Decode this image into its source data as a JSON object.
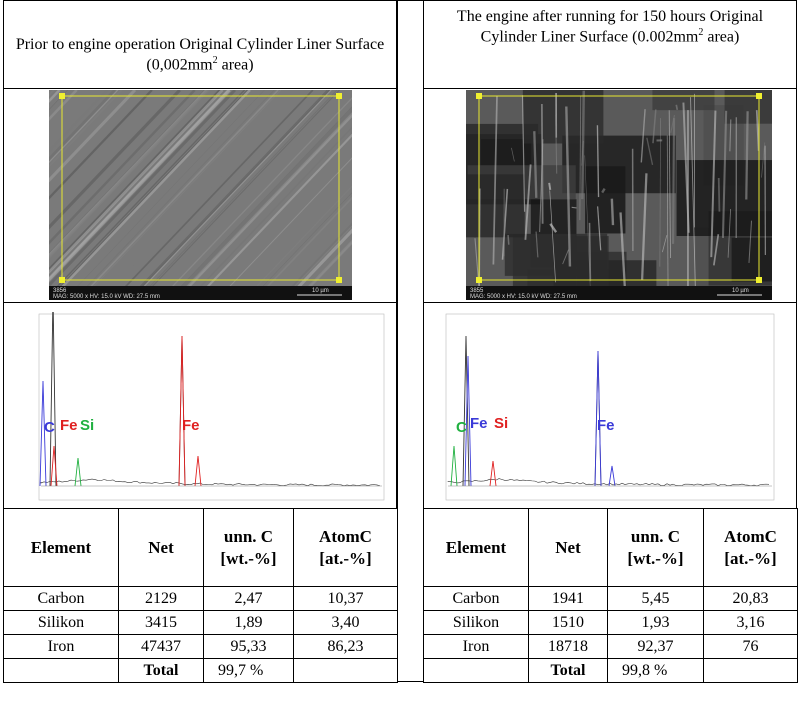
{
  "panels": [
    {
      "heading": [
        "Prior to engine operation Original Cylinder Liner Surface (0,002mm",
        "2",
        " area)"
      ],
      "sem_caption": {
        "id": "3856",
        "settings": "MAG: 5000 x   HV: 15.0 kV   WD: 27.5 mm",
        "scale": "10 µm"
      },
      "spectrum_labels": [
        {
          "text": "C",
          "color": "#3a3ad8"
        },
        {
          "text": "Fe",
          "color": "#e02020"
        },
        {
          "text": "Si",
          "color": "#20b040"
        },
        {
          "text": "Fe",
          "color": "#e02020"
        }
      ],
      "table": {
        "header": [
          "Element",
          "Net",
          "unn. C\n[wt.-%]",
          "AtomC\n[at.-%]"
        ],
        "rows": [
          [
            "Carbon",
            "2129",
            "2,47",
            "10,37"
          ],
          [
            "Silikon",
            "3415",
            "1,89",
            "3,40"
          ],
          [
            "Iron",
            "47437",
            "95,33",
            "86,23"
          ]
        ],
        "total": {
          "label": "Total",
          "value": "99,7 %"
        }
      }
    },
    {
      "heading": [
        "The engine after running for 150 hours Original Cylinder Liner Surface (0.002mm",
        "2",
        " area)"
      ],
      "sem_caption": {
        "id": "3855",
        "settings": "MAG: 5000 x   HV: 15.0 kV   WD: 27.5 mm",
        "scale": "10 µm"
      },
      "spectrum_labels": [
        {
          "text": "C",
          "color": "#20b040"
        },
        {
          "text": "Fe",
          "color": "#3a3ad8"
        },
        {
          "text": "Si",
          "color": "#e02020"
        },
        {
          "text": "Fe",
          "color": "#3a3ad8"
        }
      ],
      "table": {
        "header": [
          "Element",
          "Net",
          "unn. C\n[wt.-%]",
          "AtomC\n[at.-%]"
        ],
        "rows": [
          [
            "Carbon",
            "1941",
            "5,45",
            "20,83"
          ],
          [
            "Silikon",
            "1510",
            "1,93",
            "3,16"
          ],
          [
            "Iron",
            "18718",
            "92,37",
            "76"
          ]
        ],
        "total": {
          "label": "Total",
          "value": "99,8 %"
        }
      }
    }
  ]
}
